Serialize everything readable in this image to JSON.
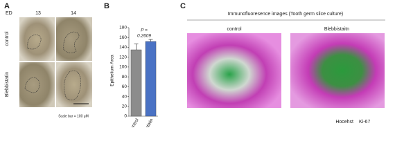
{
  "panel_a": {
    "label": "A",
    "stage_label": "ED",
    "columns": [
      "13",
      "14"
    ],
    "rows": [
      "control",
      "Blebbistatin"
    ],
    "scale_note": "Scale bar = 100 μM"
  },
  "chart_data": {
    "type": "bar",
    "label": "B",
    "ylabel": "Epithelium Area",
    "annotation": [
      "P =",
      "0.2609"
    ],
    "categories": [
      "control",
      "blebbistatin"
    ],
    "values": [
      135,
      152
    ],
    "errors": [
      12,
      4
    ],
    "colors": [
      "#8c8c8c",
      "#4a72c4"
    ],
    "ylim": [
      0,
      180
    ],
    "yticks": [
      0,
      20,
      40,
      60,
      80,
      100,
      120,
      140,
      160,
      180
    ]
  },
  "panel_c": {
    "label": "C",
    "title": "Immunofluoresence images (Tooth germ slice culture)",
    "columns": [
      "control",
      "Blebbistaitn"
    ],
    "legend": [
      {
        "name": "Hocehst",
        "color": "#2e9b4a"
      },
      {
        "name": "Ki-67",
        "color": "#b0259c"
      }
    ]
  }
}
